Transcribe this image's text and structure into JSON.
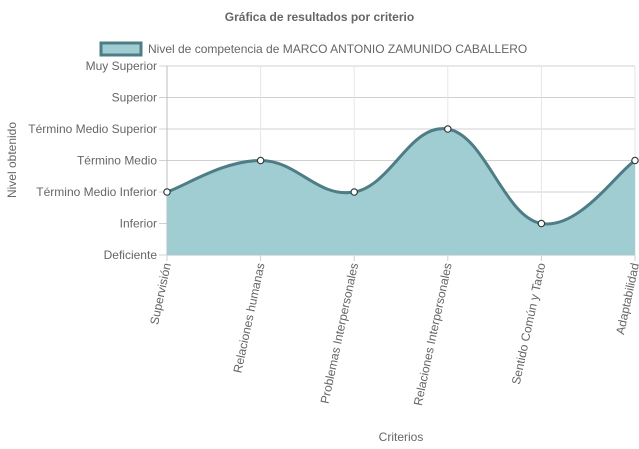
{
  "chart_data": {
    "type": "area",
    "title": "Gráfica de resultados por criterio",
    "xlabel": "Criterios",
    "ylabel": "Nivel obtenido",
    "categories": [
      "Supervisión",
      "Relaciones humanas",
      "Problemas Interpersonales",
      "Relaciones Interpersonales",
      "Sentido Común y Tacto",
      "Adaptabilidad"
    ],
    "y_levels": [
      "Deficiente",
      "Inferior",
      "Término Medio Inferior",
      "Término Medio",
      "Término Medio Superior",
      "Superior",
      "Muy Superior"
    ],
    "ylim": [
      0,
      6
    ],
    "grid": true,
    "legend_position": "top",
    "series": [
      {
        "name": "Nivel de competencia de MARCO ANTONIO ZAMUNIDO CABALLERO",
        "values": [
          2,
          3,
          2,
          4,
          1,
          3
        ],
        "line_color": "#4e7d85",
        "fill_color": "#a0cdd1"
      }
    ]
  }
}
